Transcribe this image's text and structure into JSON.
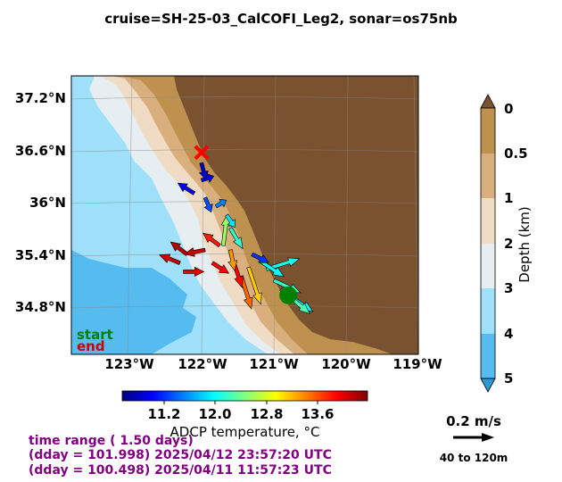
{
  "title": "cruise=SH-25-03_CalCOFI_Leg2,   sonar=os75nb",
  "map": {
    "lat_labels": [
      "37.2°N",
      "36.6°N",
      "36°N",
      "35.4°N",
      "34.8°N"
    ],
    "lon_labels": [
      "123°W",
      "122°W",
      "121°W",
      "120°W",
      "119°W"
    ],
    "lat_range": [
      34.3,
      37.5
    ],
    "lon_range": [
      -123.8,
      -119.0
    ],
    "start_label": "start",
    "end_label": "end",
    "start_color": "#008000",
    "end_color": "#ff0000",
    "land_color": "#7a5230",
    "ocean_deep_color": "#56bbee"
  },
  "temp_colorbar": {
    "ticks": [
      "11.2",
      "12.0",
      "12.8",
      "13.6"
    ],
    "range": [
      10.5,
      14.5
    ],
    "label": "ADCP temperature, °C",
    "colormap": "jet"
  },
  "depth_colorbar": {
    "ticks": [
      "0",
      "0.5",
      "1",
      "2",
      "3",
      "4",
      "5"
    ],
    "label": "Depth (km)",
    "colors": [
      "#bf914e",
      "#d9b07d",
      "#f0dcc4",
      "#e6eef2",
      "#9fe0fa",
      "#56bbee"
    ]
  },
  "info": {
    "line1": "time range ( 1.50 days)",
    "line2": "(dday = 101.998) 2025/04/12 23:57:20 UTC",
    "line3": "(dday = 100.498) 2025/04/11 11:57:23 UTC"
  },
  "scale": {
    "label": "0.2 m/s",
    "depth_range": "40 to 120m"
  },
  "chart_data": {
    "type": "vector_map",
    "title": "cruise=SH-25-03_CalCOFI_Leg2,   sonar=os75nb",
    "start": {
      "lon": -120.8,
      "lat": 34.98
    },
    "end": {
      "lon": -122.0,
      "lat": 36.62
    },
    "vectors": [
      {
        "lon": -120.8,
        "lat": 34.98,
        "u": 0.12,
        "v": -0.08,
        "temp": 12.0
      },
      {
        "lon": -120.9,
        "lat": 35.05,
        "u": 0.14,
        "v": -0.12,
        "temp": 12.3
      },
      {
        "lon": -121.0,
        "lat": 35.15,
        "u": 0.13,
        "v": -0.06,
        "temp": 12.2
      },
      {
        "lon": -121.1,
        "lat": 35.28,
        "u": 0.16,
        "v": 0.05,
        "temp": 12.1
      },
      {
        "lon": -121.2,
        "lat": 35.38,
        "u": 0.12,
        "v": -0.08,
        "temp": 12.0
      },
      {
        "lon": -121.3,
        "lat": 35.45,
        "u": 0.08,
        "v": -0.04,
        "temp": 11.2
      },
      {
        "lon": -121.35,
        "lat": 35.3,
        "u": 0.06,
        "v": -0.18,
        "temp": 13.2
      },
      {
        "lon": -121.45,
        "lat": 35.2,
        "u": 0.05,
        "v": -0.16,
        "temp": 13.6
      },
      {
        "lon": -121.55,
        "lat": 35.35,
        "u": 0.04,
        "v": -0.12,
        "temp": 14.0
      },
      {
        "lon": -121.6,
        "lat": 35.5,
        "u": 0.02,
        "v": -0.1,
        "temp": 13.4
      },
      {
        "lon": -121.75,
        "lat": 35.55,
        "u": -0.08,
        "v": 0.06,
        "temp": 13.9
      },
      {
        "lon": -121.95,
        "lat": 35.5,
        "u": -0.1,
        "v": -0.02,
        "temp": 14.2
      },
      {
        "lon": -122.2,
        "lat": 35.45,
        "u": -0.08,
        "v": 0.06,
        "temp": 14.3
      },
      {
        "lon": -122.3,
        "lat": 35.35,
        "u": -0.1,
        "v": 0.04,
        "temp": 14.2
      },
      {
        "lon": -122.25,
        "lat": 35.25,
        "u": 0.1,
        "v": 0.0,
        "temp": 14.1
      },
      {
        "lon": -121.85,
        "lat": 35.35,
        "u": 0.08,
        "v": -0.05,
        "temp": 14.0
      },
      {
        "lon": -121.7,
        "lat": 35.55,
        "u": 0.02,
        "v": 0.15,
        "temp": 12.6
      },
      {
        "lon": -121.6,
        "lat": 35.75,
        "u": 0.06,
        "v": -0.1,
        "temp": 12.2
      },
      {
        "lon": -121.65,
        "lat": 35.9,
        "u": 0.04,
        "v": -0.06,
        "temp": 11.9
      },
      {
        "lon": -121.8,
        "lat": 36.0,
        "u": 0.05,
        "v": 0.03,
        "temp": 11.5
      },
      {
        "lon": -121.95,
        "lat": 36.1,
        "u": 0.03,
        "v": -0.07,
        "temp": 11.3
      },
      {
        "lon": -122.1,
        "lat": 36.15,
        "u": -0.08,
        "v": 0.05,
        "temp": 11.0
      },
      {
        "lon": -122.0,
        "lat": 36.3,
        "u": 0.06,
        "v": 0.02,
        "temp": 10.9
      },
      {
        "lon": -122.0,
        "lat": 36.5,
        "u": 0.02,
        "v": -0.08,
        "temp": 10.8
      }
    ]
  }
}
